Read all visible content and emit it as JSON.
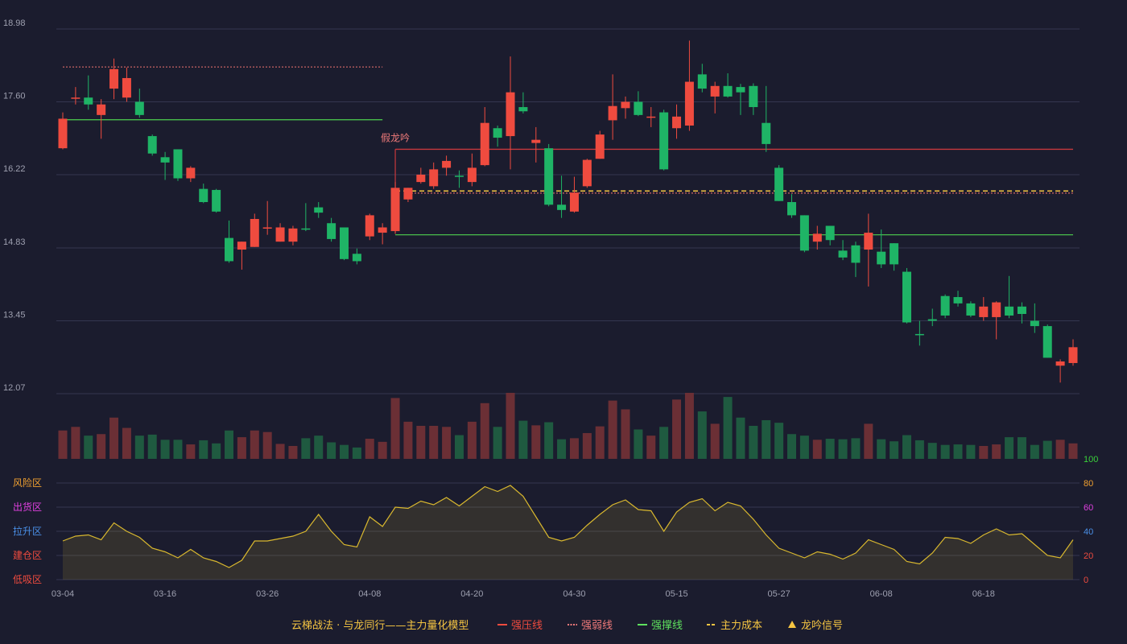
{
  "chart_data": {
    "type": "candlestick",
    "x_labels": [
      "03-04",
      "03-16",
      "03-26",
      "04-08",
      "04-20",
      "04-30",
      "05-15",
      "05-27",
      "06-08",
      "06-18"
    ],
    "x_label_index": [
      0,
      8,
      16,
      24,
      32,
      40,
      48,
      56,
      64,
      72
    ],
    "price_axis": {
      "ticks": [
        "18.98",
        "17.60",
        "16.22",
        "14.83",
        "13.45",
        "12.07"
      ],
      "range": [
        12.07,
        18.98
      ]
    },
    "candles": [
      [
        16.72,
        17.28,
        17.4,
        16.7
      ],
      [
        17.68,
        17.68,
        17.88,
        17.55
      ],
      [
        17.68,
        17.55,
        18.1,
        17.45
      ],
      [
        17.35,
        17.55,
        17.65,
        16.9
      ],
      [
        17.85,
        18.22,
        18.42,
        17.65
      ],
      [
        17.68,
        18.05,
        18.25,
        17.6
      ],
      [
        17.6,
        17.35,
        17.85,
        17.3
      ],
      [
        16.95,
        16.62,
        16.98,
        16.58
      ],
      [
        16.55,
        16.45,
        16.65,
        16.12
      ],
      [
        16.7,
        16.15,
        16.7,
        16.1
      ],
      [
        16.15,
        16.35,
        16.38,
        16.08
      ],
      [
        15.95,
        15.7,
        16.05,
        15.68
      ],
      [
        15.93,
        15.52,
        15.95,
        15.5
      ],
      [
        15.02,
        14.58,
        15.35,
        14.55
      ],
      [
        14.8,
        14.95,
        14.95,
        14.42
      ],
      [
        14.85,
        15.38,
        15.48,
        14.85
      ],
      [
        15.2,
        15.22,
        15.72,
        15.08
      ],
      [
        14.95,
        15.22,
        15.3,
        14.95
      ],
      [
        14.95,
        15.2,
        15.25,
        14.88
      ],
      [
        15.2,
        15.18,
        15.68,
        15.15
      ],
      [
        15.6,
        15.5,
        15.7,
        15.4
      ],
      [
        15.3,
        15.0,
        15.4,
        14.95
      ],
      [
        15.22,
        14.62,
        15.22,
        14.6
      ],
      [
        14.72,
        14.58,
        14.82,
        14.52
      ],
      [
        15.05,
        15.45,
        15.48,
        14.98
      ],
      [
        15.12,
        15.22,
        15.3,
        14.9
      ],
      [
        15.15,
        15.97,
        16.08,
        15.1
      ],
      [
        15.75,
        15.97,
        15.97,
        15.7
      ],
      [
        16.08,
        16.22,
        16.35,
        16.05
      ],
      [
        16.0,
        16.32,
        16.45,
        15.95
      ],
      [
        16.35,
        16.48,
        16.58,
        16.2
      ],
      [
        16.2,
        16.18,
        16.3,
        15.97
      ],
      [
        16.08,
        16.35,
        16.62,
        16.0
      ],
      [
        16.4,
        17.2,
        17.5,
        16.38
      ],
      [
        17.1,
        16.92,
        17.15,
        16.75
      ],
      [
        16.95,
        17.78,
        18.46,
        16.32
      ],
      [
        17.5,
        17.42,
        17.78,
        17.38
      ],
      [
        16.82,
        16.88,
        17.12,
        16.45
      ],
      [
        16.72,
        15.65,
        16.8,
        15.62
      ],
      [
        15.65,
        15.55,
        16.2,
        15.4
      ],
      [
        15.52,
        15.88,
        16.18,
        15.5
      ],
      [
        16.0,
        16.5,
        16.52,
        15.97
      ],
      [
        16.52,
        16.98,
        17.05,
        16.52
      ],
      [
        17.25,
        17.52,
        18.12,
        16.88
      ],
      [
        17.48,
        17.6,
        17.7,
        17.28
      ],
      [
        17.6,
        17.35,
        17.8,
        17.33
      ],
      [
        17.32,
        17.32,
        17.5,
        17.12
      ],
      [
        17.4,
        16.32,
        17.45,
        16.3
      ],
      [
        17.1,
        17.32,
        17.55,
        16.9
      ],
      [
        17.15,
        17.98,
        18.76,
        17.05
      ],
      [
        18.12,
        17.85,
        18.32,
        17.78
      ],
      [
        17.7,
        17.9,
        17.98,
        17.38
      ],
      [
        17.9,
        17.7,
        18.14,
        17.68
      ],
      [
        17.88,
        17.78,
        17.94,
        17.35
      ],
      [
        17.9,
        17.5,
        17.95,
        17.35
      ],
      [
        17.2,
        16.8,
        17.9,
        16.65
      ],
      [
        16.35,
        15.72,
        16.4,
        15.72
      ],
      [
        15.7,
        15.45,
        15.85,
        15.4
      ],
      [
        15.45,
        14.78,
        15.45,
        14.75
      ],
      [
        14.95,
        15.1,
        15.25,
        14.8
      ],
      [
        15.25,
        14.98,
        15.25,
        14.88
      ],
      [
        14.78,
        14.65,
        14.98,
        14.6
      ],
      [
        14.88,
        14.55,
        14.95,
        14.28
      ],
      [
        14.8,
        15.12,
        15.48,
        14.1
      ],
      [
        14.76,
        14.52,
        15.18,
        14.45
      ],
      [
        14.92,
        14.52,
        14.92,
        14.4
      ],
      [
        14.38,
        13.42,
        14.45,
        13.4
      ],
      [
        13.2,
        13.18,
        13.45,
        12.98
      ],
      [
        13.48,
        13.45,
        13.68,
        13.35
      ],
      [
        13.92,
        13.55,
        13.95,
        13.5
      ],
      [
        13.9,
        13.78,
        14.02,
        13.72
      ],
      [
        13.78,
        13.55,
        13.82,
        13.52
      ],
      [
        13.52,
        13.72,
        13.9,
        13.45
      ],
      [
        13.52,
        13.8,
        13.82,
        13.1
      ],
      [
        13.72,
        13.55,
        14.3,
        13.5
      ],
      [
        13.72,
        13.58,
        13.8,
        13.4
      ],
      [
        13.45,
        13.35,
        13.78,
        13.22
      ],
      [
        13.35,
        12.75,
        13.38,
        12.75
      ],
      [
        12.6,
        12.68,
        12.72,
        12.28
      ],
      [
        12.65,
        12.95,
        13.1,
        12.6
      ]
    ],
    "volumes": [
      55,
      62,
      45,
      48,
      80,
      60,
      45,
      47,
      37,
      37,
      28,
      36,
      30,
      55,
      42,
      55,
      52,
      29,
      25,
      40,
      45,
      32,
      27,
      22,
      39,
      33,
      118,
      72,
      64,
      64,
      62,
      46,
      72,
      108,
      62,
      128,
      74,
      65,
      71,
      38,
      40,
      50,
      63,
      113,
      96,
      57,
      45,
      62,
      115,
      128,
      92,
      68,
      120,
      80,
      64,
      75,
      70,
      48,
      45,
      37,
      39,
      38,
      40,
      68,
      38,
      34,
      46,
      36,
      31,
      27,
      28,
      27,
      25,
      28,
      42,
      42,
      27,
      35,
      37,
      30
    ],
    "indicator": {
      "axis_ticks": [
        "100",
        "80",
        "60",
        "40",
        "20",
        "0"
      ],
      "range": [
        0,
        100
      ],
      "zones": [
        "风险区",
        "出货区",
        "拉升区",
        "建仓区",
        "低吸区"
      ],
      "values": [
        32,
        36,
        37,
        33,
        47,
        40,
        35,
        26,
        23,
        18,
        25,
        18,
        15,
        10,
        16,
        32,
        32,
        34,
        36,
        40,
        54,
        40,
        29,
        27,
        52,
        44,
        60,
        59,
        65,
        62,
        68,
        61,
        69,
        77,
        73,
        78,
        69,
        52,
        35,
        32,
        35,
        45,
        54,
        62,
        66,
        58,
        57,
        40,
        56,
        64,
        67,
        57,
        64,
        61,
        50,
        37,
        26,
        22,
        18,
        23,
        21,
        17,
        22,
        33,
        29,
        25,
        15,
        13,
        22,
        35,
        34,
        30,
        37,
        42,
        37,
        38,
        29,
        20,
        18,
        33
      ]
    },
    "lines": [
      {
        "series": "强压线",
        "value": 16.7,
        "from": 26,
        "to": 79
      },
      {
        "series": "强弱线",
        "value": 18.26,
        "from": 0,
        "to": 25
      },
      {
        "series": "强弱线",
        "value": 15.87,
        "from": 27,
        "to": 79
      },
      {
        "series": "强撑线",
        "value": 17.26,
        "from": 0,
        "to": 25
      },
      {
        "series": "强撑线",
        "value": 15.08,
        "from": 26,
        "to": 79
      },
      {
        "series": "主力成本",
        "value": 15.91,
        "from": 26,
        "to": 79
      }
    ],
    "annotations": [
      {
        "text": "假龙吟",
        "index": 26,
        "value": 16.85
      }
    ],
    "legend": {
      "title": "云梯战法 · 与龙同行——主力量化模型",
      "items": [
        {
          "label": "强压线",
          "color": "#ef4b3f",
          "style": "solid"
        },
        {
          "label": "强弱线",
          "color": "#ef7a7a",
          "style": "dotted"
        },
        {
          "label": "强撑线",
          "color": "#5ee05e",
          "style": "solid"
        },
        {
          "label": "主力成本",
          "color": "#f5c542",
          "style": "dashed"
        },
        {
          "label": "龙吟信号",
          "color": "#f5c542",
          "style": "triangle"
        }
      ]
    },
    "colors": {
      "up": "#ef4b3f",
      "down": "#1fb466",
      "up_volume": "#6b2f35",
      "down_volume": "#1f5a40",
      "indicator_line": "#d9b82e",
      "grid": "#343650",
      "axis_text": "#9ea0b0"
    }
  }
}
